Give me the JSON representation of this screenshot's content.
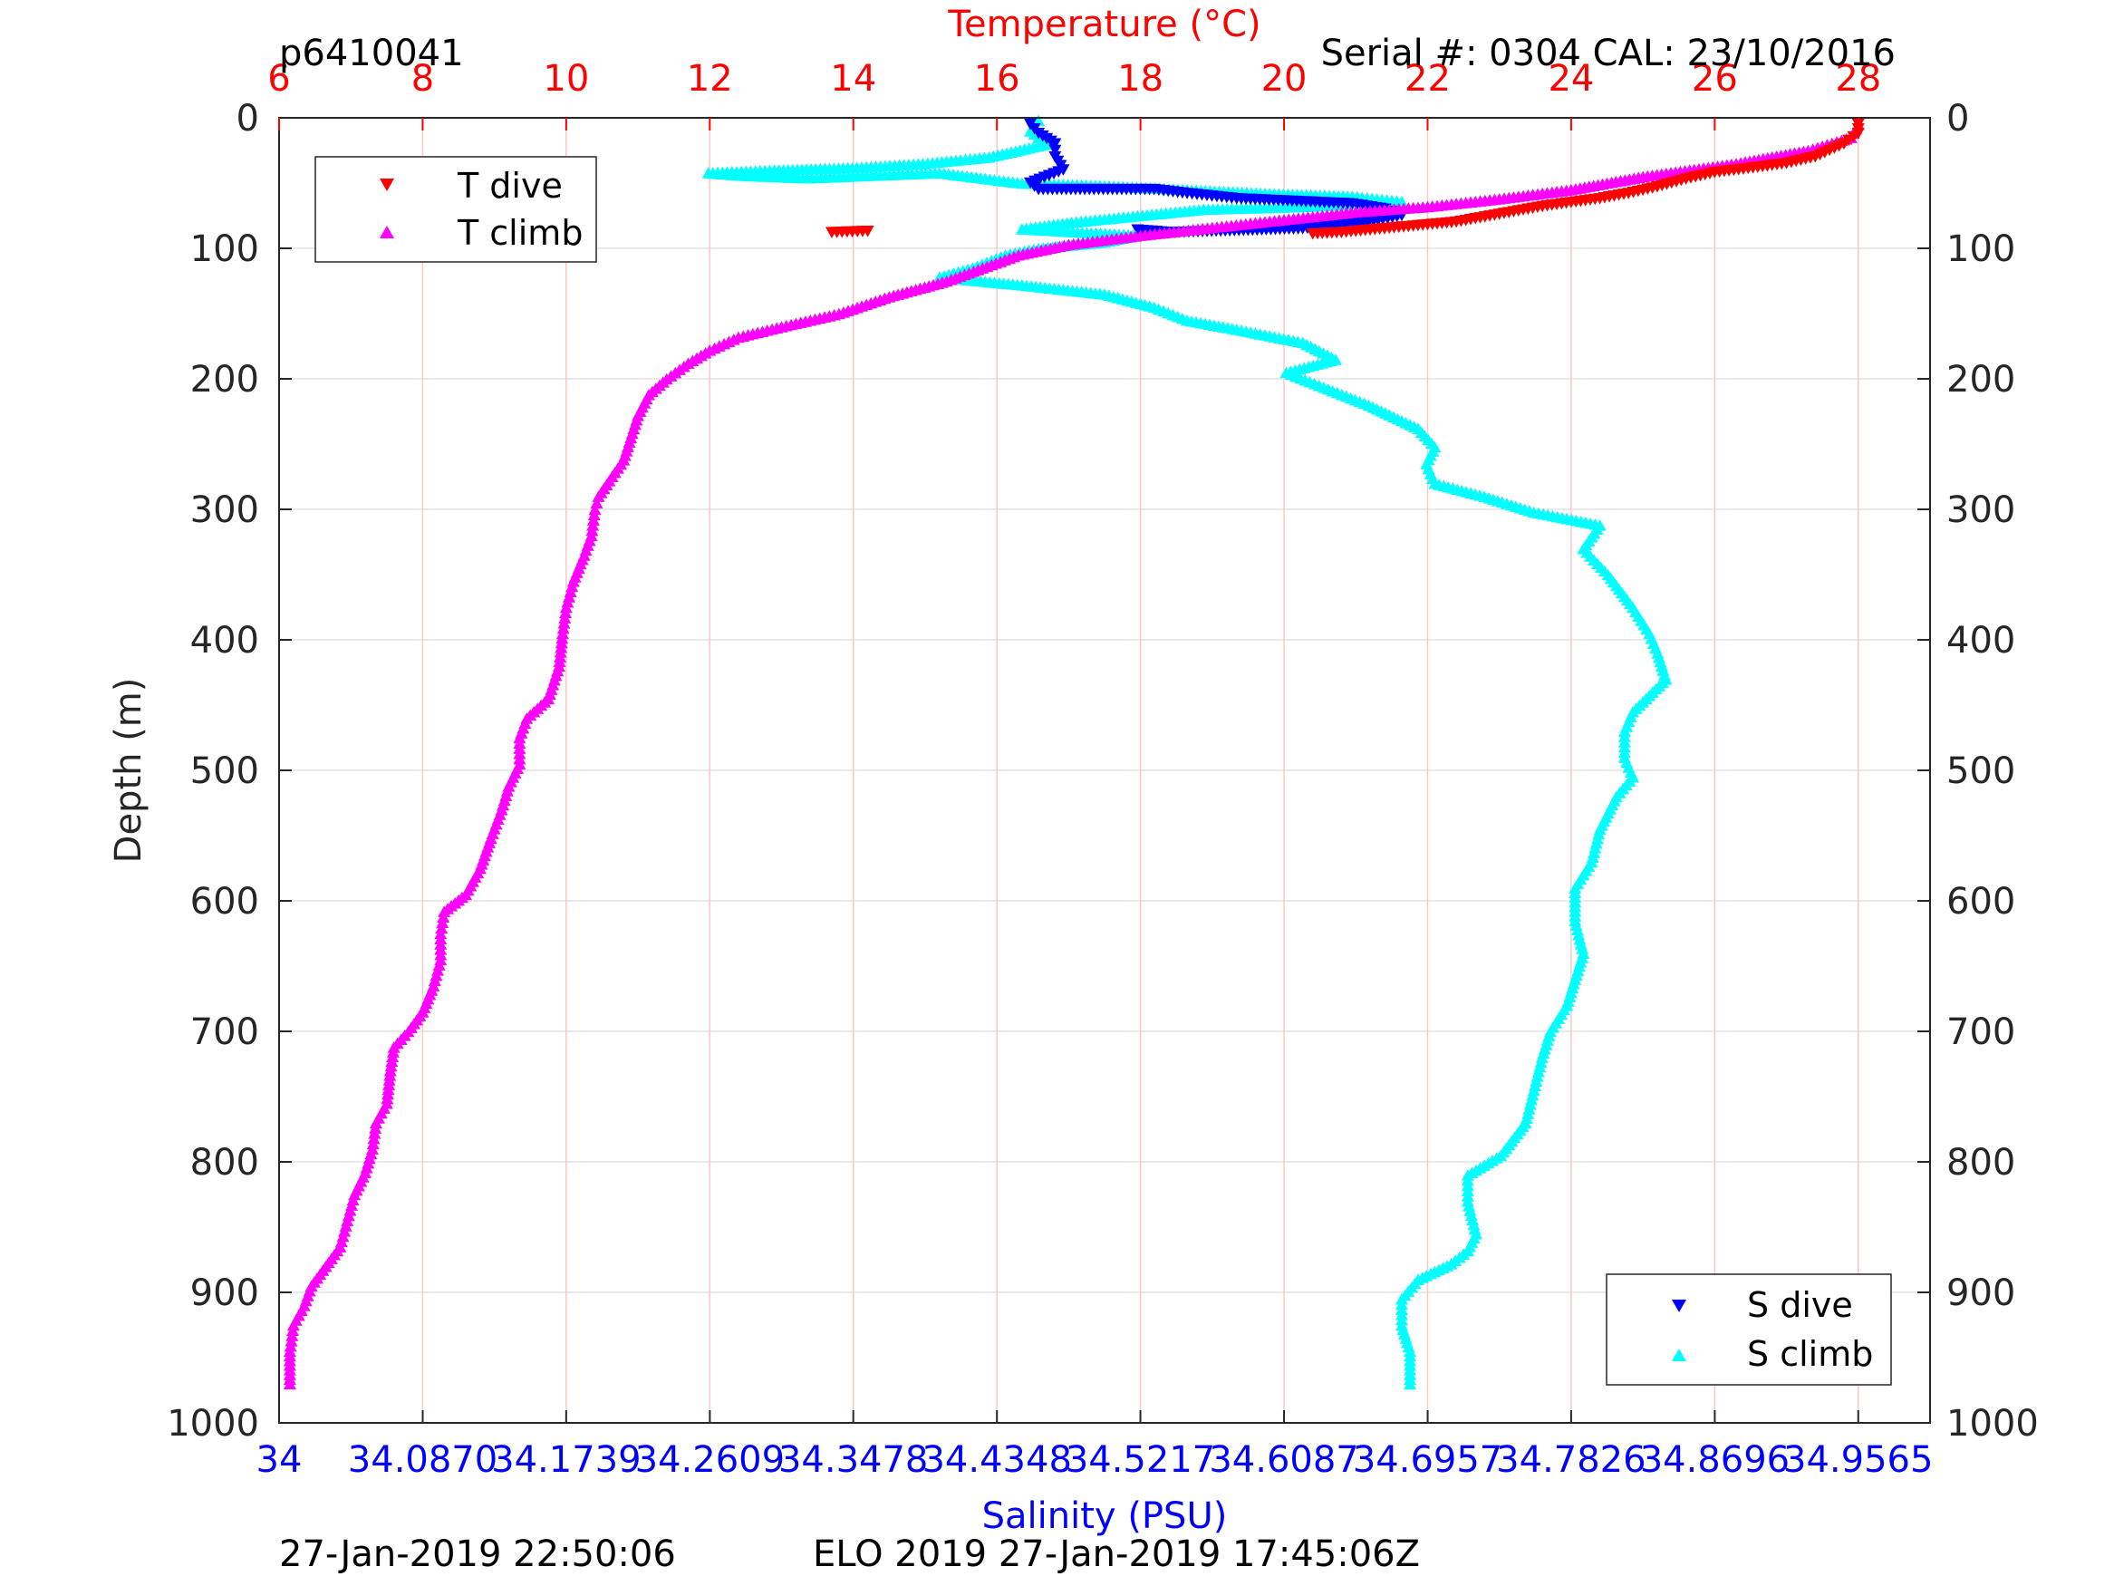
{
  "header": {
    "top_left": "p6410041",
    "top_right": "Serial #: 0304  CAL: 23/10/2016",
    "bottom_left": "27-Jan-2019 22:50:06",
    "bottom_center": "ELO 2019 27-Jan-2019 17:45:06Z"
  },
  "chart_data": {
    "type": "scatter",
    "y_axis": {
      "label": "Depth (m)",
      "range": [
        0,
        1000
      ],
      "reversed": true,
      "ticks": [
        "0",
        "100",
        "200",
        "300",
        "400",
        "500",
        "600",
        "700",
        "800",
        "900",
        "1000"
      ],
      "tick_values": [
        0,
        100,
        200,
        300,
        400,
        500,
        600,
        700,
        800,
        900,
        1000
      ]
    },
    "x_axis_top": {
      "label": "Temperature (°C)",
      "color": "#ff0000",
      "range": [
        6,
        29
      ],
      "ticks": [
        "6",
        "8",
        "10",
        "12",
        "14",
        "16",
        "18",
        "20",
        "22",
        "24",
        "26",
        "28"
      ],
      "tick_values": [
        6,
        8,
        10,
        12,
        14,
        16,
        18,
        20,
        22,
        24,
        26,
        28
      ],
      "grid": true,
      "grid_color": "#f6c8c8"
    },
    "x_axis_bottom": {
      "label": "Salinity (PSU)",
      "color": "#0000ff",
      "range": [
        34,
        35.0
      ],
      "ticks": [
        "34",
        "34.0870",
        "34.1739",
        "34.2609",
        "34.3478",
        "34.4348",
        "34.5217",
        "34.6087",
        "34.6957",
        "34.7826",
        "34.8696",
        "34.9565"
      ],
      "tick_values": [
        34,
        34.087,
        34.1739,
        34.2609,
        34.3478,
        34.4348,
        34.5217,
        34.6087,
        34.6957,
        34.7826,
        34.8696,
        34.9565
      ]
    },
    "legend_top_left": {
      "placement": "top-left",
      "entries": [
        {
          "label": "T dive",
          "marker": "triangle-down",
          "color": "#ff0000"
        },
        {
          "label": "T climb",
          "marker": "triangle-up",
          "color": "#ff00ff"
        }
      ]
    },
    "legend_bottom_right": {
      "placement": "bottom-right",
      "entries": [
        {
          "label": "S dive",
          "marker": "triangle-down",
          "color": "#0000ff"
        },
        {
          "label": "S climb",
          "marker": "triangle-up",
          "color": "#00ffff"
        }
      ]
    },
    "series": [
      {
        "name": "T climb",
        "axis": "temperature",
        "color": "#ff00ff",
        "marker": "triangle-up",
        "points": [
          [
            28.0,
            5
          ],
          [
            27.9,
            15
          ],
          [
            27.3,
            25
          ],
          [
            26.3,
            35
          ],
          [
            25.0,
            45
          ],
          [
            24.0,
            55
          ],
          [
            23.0,
            62
          ],
          [
            22.0,
            68
          ],
          [
            21.0,
            72
          ],
          [
            20.0,
            78
          ],
          [
            19.0,
            84
          ],
          [
            18.0,
            90
          ],
          [
            17.0,
            97
          ],
          [
            16.3,
            105
          ],
          [
            15.8,
            115
          ],
          [
            15.3,
            125
          ],
          [
            14.5,
            137
          ],
          [
            13.8,
            150
          ],
          [
            13.0,
            160
          ],
          [
            12.4,
            168
          ],
          [
            12.0,
            178
          ],
          [
            11.7,
            188
          ],
          [
            11.4,
            200
          ],
          [
            11.15,
            212
          ],
          [
            11.0,
            228
          ],
          [
            10.9,
            245
          ],
          [
            10.8,
            262
          ],
          [
            10.6,
            278
          ],
          [
            10.45,
            290
          ],
          [
            10.4,
            300
          ],
          [
            10.35,
            320
          ],
          [
            10.25,
            335
          ],
          [
            10.1,
            355
          ],
          [
            10.0,
            375
          ],
          [
            9.95,
            395
          ],
          [
            9.9,
            420
          ],
          [
            9.75,
            445
          ],
          [
            9.45,
            460
          ],
          [
            9.35,
            475
          ],
          [
            9.35,
            495
          ],
          [
            9.2,
            512
          ],
          [
            9.1,
            530
          ],
          [
            8.95,
            552
          ],
          [
            8.8,
            575
          ],
          [
            8.6,
            595
          ],
          [
            8.3,
            608
          ],
          [
            8.25,
            625
          ],
          [
            8.25,
            645
          ],
          [
            8.15,
            665
          ],
          [
            8.0,
            685
          ],
          [
            7.8,
            700
          ],
          [
            7.6,
            712
          ],
          [
            7.55,
            730
          ],
          [
            7.5,
            755
          ],
          [
            7.35,
            770
          ],
          [
            7.3,
            790
          ],
          [
            7.2,
            808
          ],
          [
            7.05,
            825
          ],
          [
            6.95,
            845
          ],
          [
            6.85,
            865
          ],
          [
            6.65,
            880
          ],
          [
            6.45,
            895
          ],
          [
            6.35,
            910
          ],
          [
            6.2,
            925
          ],
          [
            6.15,
            945
          ],
          [
            6.15,
            970
          ]
        ]
      },
      {
        "name": "T dive",
        "axis": "temperature",
        "color": "#ff0000",
        "marker": "triangle-down",
        "points": [
          [
            28.0,
            5
          ],
          [
            28.0,
            12
          ],
          [
            27.8,
            20
          ],
          [
            27.4,
            30
          ],
          [
            27.0,
            35
          ],
          [
            26.6,
            38
          ],
          [
            26.0,
            42
          ],
          [
            25.6,
            47
          ],
          [
            25.2,
            53
          ],
          [
            24.8,
            58
          ],
          [
            24.4,
            62
          ],
          [
            24.0,
            65
          ],
          [
            23.6,
            68
          ],
          [
            23.2,
            72
          ],
          [
            22.8,
            76
          ],
          [
            22.4,
            80
          ],
          [
            22.0,
            82
          ],
          [
            21.6,
            84
          ],
          [
            21.2,
            86
          ],
          [
            20.8,
            88
          ],
          [
            20.4,
            89
          ],
          [
            13.7,
            88
          ],
          [
            14.2,
            87
          ]
        ]
      },
      {
        "name": "S climb",
        "axis": "salinity",
        "color": "#00ffff",
        "marker": "triangle-up",
        "points": [
          [
            34.46,
            2
          ],
          [
            34.455,
            10
          ],
          [
            34.465,
            20
          ],
          [
            34.43,
            30
          ],
          [
            34.39,
            35
          ],
          [
            34.35,
            38
          ],
          [
            34.3,
            40
          ],
          [
            34.26,
            42
          ],
          [
            34.28,
            44
          ],
          [
            34.32,
            46
          ],
          [
            34.4,
            42
          ],
          [
            34.45,
            50
          ],
          [
            34.5,
            52
          ],
          [
            34.55,
            55
          ],
          [
            34.6,
            58
          ],
          [
            34.65,
            60
          ],
          [
            34.68,
            64
          ],
          [
            34.62,
            68
          ],
          [
            34.56,
            70
          ],
          [
            34.52,
            75
          ],
          [
            34.48,
            80
          ],
          [
            34.45,
            85
          ],
          [
            34.52,
            90
          ],
          [
            34.5,
            95
          ],
          [
            34.46,
            100
          ],
          [
            34.44,
            105
          ],
          [
            34.42,
            115
          ],
          [
            34.4,
            122
          ],
          [
            34.45,
            128
          ],
          [
            34.5,
            135
          ],
          [
            34.53,
            145
          ],
          [
            34.55,
            155
          ],
          [
            34.58,
            162
          ],
          [
            34.62,
            172
          ],
          [
            34.64,
            185
          ],
          [
            34.61,
            195
          ],
          [
            34.63,
            205
          ],
          [
            34.66,
            220
          ],
          [
            34.69,
            238
          ],
          [
            34.7,
            252
          ],
          [
            34.695,
            265
          ],
          [
            34.7,
            280
          ],
          [
            34.73,
            290
          ],
          [
            34.76,
            302
          ],
          [
            34.8,
            312
          ],
          [
            34.79,
            330
          ],
          [
            34.805,
            350
          ],
          [
            34.82,
            375
          ],
          [
            34.83,
            395
          ],
          [
            34.835,
            410
          ],
          [
            34.84,
            430
          ],
          [
            34.82,
            455
          ],
          [
            34.815,
            470
          ],
          [
            34.815,
            490
          ],
          [
            34.82,
            505
          ],
          [
            34.81,
            520
          ],
          [
            34.8,
            545
          ],
          [
            34.795,
            570
          ],
          [
            34.785,
            590
          ],
          [
            34.785,
            615
          ],
          [
            34.79,
            640
          ],
          [
            34.785,
            660
          ],
          [
            34.78,
            680
          ],
          [
            34.77,
            700
          ],
          [
            34.765,
            720
          ],
          [
            34.76,
            745
          ],
          [
            34.755,
            770
          ],
          [
            34.74,
            795
          ],
          [
            34.72,
            810
          ],
          [
            34.72,
            830
          ],
          [
            34.725,
            855
          ],
          [
            34.72,
            868
          ],
          [
            34.71,
            878
          ],
          [
            34.69,
            890
          ],
          [
            34.68,
            905
          ],
          [
            34.68,
            925
          ],
          [
            34.685,
            945
          ],
          [
            34.685,
            970
          ]
        ]
      },
      {
        "name": "S dive",
        "axis": "salinity",
        "color": "#0000ff",
        "marker": "triangle-down",
        "points": [
          [
            34.455,
            5
          ],
          [
            34.46,
            12
          ],
          [
            34.47,
            20
          ],
          [
            34.47,
            30
          ],
          [
            34.475,
            40
          ],
          [
            34.455,
            50
          ],
          [
            34.46,
            55
          ],
          [
            34.53,
            55
          ],
          [
            34.55,
            58
          ],
          [
            34.58,
            62
          ],
          [
            34.65,
            66
          ],
          [
            34.67,
            70
          ],
          [
            34.68,
            75
          ],
          [
            34.66,
            80
          ],
          [
            34.62,
            85
          ],
          [
            34.54,
            88
          ],
          [
            34.52,
            86
          ]
        ]
      }
    ]
  }
}
